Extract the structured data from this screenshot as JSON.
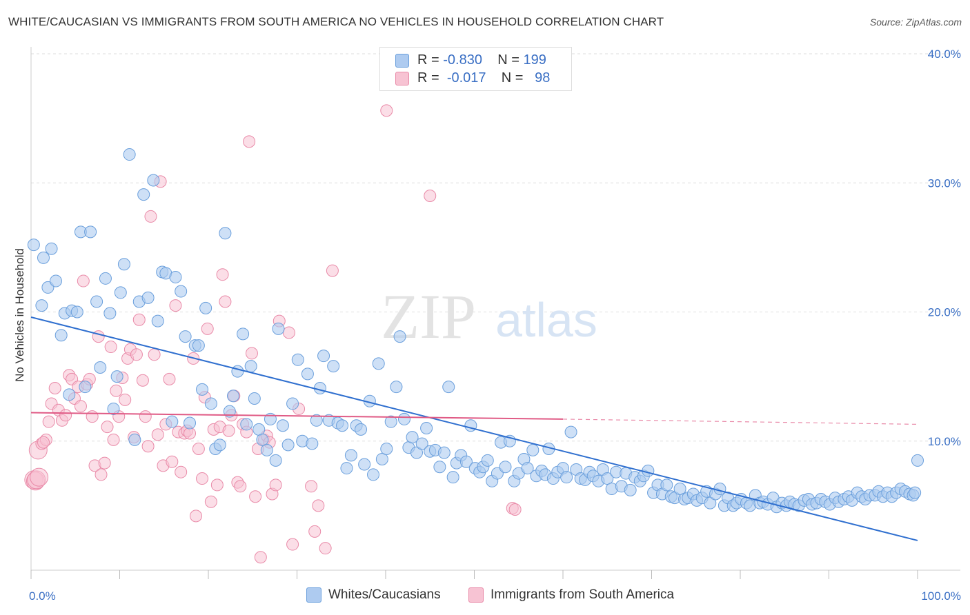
{
  "title": "WHITE/CAUCASIAN VS IMMIGRANTS FROM SOUTH AMERICA NO VEHICLES IN HOUSEHOLD CORRELATION CHART",
  "source": "Source: ZipAtlas.com",
  "colors": {
    "blue_fill": "#aecbf0",
    "blue_stroke": "#6a9fdc",
    "blue_line": "#2f6fcf",
    "pink_fill": "#f7c3d3",
    "pink_stroke": "#e98aa8",
    "pink_line": "#e05a85",
    "tick_text": "#3a6fc4",
    "grid": "#dddddd"
  },
  "legend": {
    "rows": [
      {
        "r_label": "R =",
        "r_value": "-0.830",
        "n_label": "N =",
        "n_value": "199"
      },
      {
        "r_label": "R =",
        "r_value": "-0.017",
        "n_label": "N =",
        "n_value": "98"
      }
    ]
  },
  "bottom_legend": [
    "Whites/Caucasians",
    "Immigrants from South America"
  ],
  "chart_data": {
    "type": "scatter",
    "title": "WHITE/CAUCASIAN VS IMMIGRANTS FROM SOUTH AMERICA NO VEHICLES IN HOUSEHOLD CORRELATION CHART",
    "xlabel": "",
    "ylabel": "No Vehicles in Household",
    "xlim": [
      0,
      100
    ],
    "ylim": [
      0,
      40
    ],
    "x_tick_labels": [
      "0.0%",
      "100.0%"
    ],
    "y_ticks": [
      10,
      20,
      30,
      40
    ],
    "y_tick_labels": [
      "10.0%",
      "20.0%",
      "30.0%",
      "40.0%"
    ],
    "grid": true,
    "legend_position": "top-center",
    "watermark": "ZIPatlas",
    "series": [
      {
        "name": "Whites/Caucasians",
        "r": -0.83,
        "n": 199,
        "trend": {
          "x": [
            0,
            100
          ],
          "y": [
            19.6,
            2.3
          ]
        },
        "points": [
          [
            0.3,
            25.2
          ],
          [
            1.2,
            20.5
          ],
          [
            1.4,
            24.2
          ],
          [
            1.9,
            21.9
          ],
          [
            2.3,
            24.9
          ],
          [
            2.8,
            22.4
          ],
          [
            3.4,
            18.2
          ],
          [
            3.8,
            19.9
          ],
          [
            4.3,
            13.6
          ],
          [
            4.6,
            20.1
          ],
          [
            5.2,
            20.0
          ],
          [
            5.6,
            26.2
          ],
          [
            6.1,
            14.2
          ],
          [
            6.7,
            26.2
          ],
          [
            7.4,
            20.8
          ],
          [
            7.8,
            15.7
          ],
          [
            8.4,
            22.6
          ],
          [
            8.9,
            19.9
          ],
          [
            9.3,
            12.5
          ],
          [
            9.7,
            15.0
          ],
          [
            10.1,
            21.5
          ],
          [
            10.5,
            23.7
          ],
          [
            11.1,
            32.2
          ],
          [
            11.7,
            10.1
          ],
          [
            12.2,
            20.8
          ],
          [
            12.7,
            29.1
          ],
          [
            13.2,
            21.1
          ],
          [
            13.8,
            30.2
          ],
          [
            14.3,
            19.3
          ],
          [
            14.8,
            23.1
          ],
          [
            15.2,
            23.0
          ],
          [
            15.9,
            11.5
          ],
          [
            16.3,
            22.7
          ],
          [
            16.9,
            21.6
          ],
          [
            17.4,
            18.1
          ],
          [
            17.9,
            11.4
          ],
          [
            18.5,
            17.4
          ],
          [
            18.9,
            17.4
          ],
          [
            19.3,
            14.0
          ],
          [
            19.7,
            20.3
          ],
          [
            20.3,
            12.9
          ],
          [
            20.8,
            9.4
          ],
          [
            21.3,
            9.7
          ],
          [
            21.9,
            26.1
          ],
          [
            22.4,
            12.3
          ],
          [
            22.8,
            13.5
          ],
          [
            23.3,
            15.4
          ],
          [
            23.9,
            18.3
          ],
          [
            24.3,
            11.3
          ],
          [
            24.8,
            15.8
          ],
          [
            25.2,
            13.3
          ],
          [
            25.7,
            10.9
          ],
          [
            26.1,
            10.1
          ],
          [
            26.6,
            9.3
          ],
          [
            27.0,
            11.7
          ],
          [
            27.6,
            8.5
          ],
          [
            27.9,
            18.7
          ],
          [
            28.4,
            11.2
          ],
          [
            29.0,
            9.7
          ],
          [
            29.5,
            12.9
          ],
          [
            30.1,
            16.3
          ],
          [
            30.6,
            10.0
          ],
          [
            31.2,
            15.2
          ],
          [
            31.7,
            9.8
          ],
          [
            32.2,
            11.6
          ],
          [
            32.6,
            14.1
          ],
          [
            33.0,
            16.6
          ],
          [
            33.6,
            11.6
          ],
          [
            34.1,
            15.8
          ],
          [
            34.6,
            11.4
          ],
          [
            35.1,
            11.2
          ],
          [
            35.6,
            7.9
          ],
          [
            36.1,
            8.9
          ],
          [
            36.7,
            11.2
          ],
          [
            37.2,
            10.9
          ],
          [
            37.6,
            8.2
          ],
          [
            38.2,
            13.1
          ],
          [
            38.6,
            7.4
          ],
          [
            39.2,
            16.0
          ],
          [
            39.6,
            8.6
          ],
          [
            40.1,
            9.4
          ],
          [
            40.6,
            11.5
          ],
          [
            41.2,
            14.2
          ],
          [
            41.6,
            18.1
          ],
          [
            42.1,
            11.7
          ],
          [
            42.6,
            9.5
          ],
          [
            43.0,
            10.3
          ],
          [
            43.5,
            9.1
          ],
          [
            44.1,
            9.8
          ],
          [
            44.6,
            11.0
          ],
          [
            45.0,
            9.2
          ],
          [
            45.6,
            9.3
          ],
          [
            46.1,
            8.0
          ],
          [
            46.6,
            9.1
          ],
          [
            47.1,
            14.2
          ],
          [
            47.6,
            7.2
          ],
          [
            48.0,
            8.3
          ],
          [
            48.5,
            8.9
          ],
          [
            49.1,
            8.4
          ],
          [
            49.6,
            11.2
          ],
          [
            50.1,
            7.9
          ],
          [
            50.6,
            7.6
          ],
          [
            51.0,
            8.0
          ],
          [
            51.5,
            8.5
          ],
          [
            52.0,
            6.9
          ],
          [
            52.6,
            7.5
          ],
          [
            53.0,
            9.9
          ],
          [
            53.5,
            8.0
          ],
          [
            54.0,
            10.0
          ],
          [
            54.5,
            6.9
          ],
          [
            55.0,
            7.5
          ],
          [
            55.6,
            8.6
          ],
          [
            56.0,
            7.9
          ],
          [
            56.6,
            9.3
          ],
          [
            57.0,
            7.3
          ],
          [
            57.6,
            7.7
          ],
          [
            58.0,
            7.4
          ],
          [
            58.4,
            9.4
          ],
          [
            58.9,
            7.1
          ],
          [
            59.4,
            7.6
          ],
          [
            60.0,
            7.9
          ],
          [
            60.4,
            7.2
          ],
          [
            60.9,
            10.7
          ],
          [
            61.5,
            7.8
          ],
          [
            62.0,
            7.1
          ],
          [
            62.5,
            7.0
          ],
          [
            63.0,
            7.6
          ],
          [
            63.4,
            7.3
          ],
          [
            64.0,
            6.9
          ],
          [
            64.5,
            7.8
          ],
          [
            65.0,
            7.1
          ],
          [
            65.5,
            6.3
          ],
          [
            66.0,
            7.6
          ],
          [
            66.6,
            6.5
          ],
          [
            67.1,
            7.5
          ],
          [
            67.6,
            6.2
          ],
          [
            68.1,
            7.2
          ],
          [
            68.7,
            6.9
          ],
          [
            69.1,
            7.3
          ],
          [
            69.6,
            7.7
          ],
          [
            70.2,
            6.0
          ],
          [
            70.7,
            6.6
          ],
          [
            71.2,
            5.9
          ],
          [
            71.7,
            6.6
          ],
          [
            72.2,
            5.7
          ],
          [
            72.6,
            5.6
          ],
          [
            73.2,
            6.3
          ],
          [
            73.7,
            5.5
          ],
          [
            74.1,
            5.6
          ],
          [
            74.7,
            5.9
          ],
          [
            75.1,
            5.4
          ],
          [
            75.7,
            5.6
          ],
          [
            76.2,
            6.1
          ],
          [
            76.6,
            5.2
          ],
          [
            77.2,
            5.9
          ],
          [
            77.7,
            6.3
          ],
          [
            78.2,
            5.0
          ],
          [
            78.6,
            5.6
          ],
          [
            79.2,
            5.0
          ],
          [
            79.6,
            5.2
          ],
          [
            80.1,
            5.5
          ],
          [
            80.7,
            5.2
          ],
          [
            81.1,
            5.0
          ],
          [
            81.7,
            5.8
          ],
          [
            82.2,
            5.2
          ],
          [
            82.6,
            5.3
          ],
          [
            83.1,
            5.1
          ],
          [
            83.7,
            5.6
          ],
          [
            84.1,
            4.9
          ],
          [
            84.7,
            5.2
          ],
          [
            85.2,
            5.0
          ],
          [
            85.6,
            5.3
          ],
          [
            86.1,
            5.1
          ],
          [
            86.6,
            5.0
          ],
          [
            87.2,
            5.4
          ],
          [
            87.7,
            5.5
          ],
          [
            88.1,
            5.1
          ],
          [
            88.6,
            5.2
          ],
          [
            89.1,
            5.5
          ],
          [
            89.6,
            5.3
          ],
          [
            90.1,
            5.1
          ],
          [
            90.7,
            5.6
          ],
          [
            91.1,
            5.3
          ],
          [
            91.7,
            5.5
          ],
          [
            92.2,
            5.7
          ],
          [
            92.6,
            5.4
          ],
          [
            93.2,
            6.0
          ],
          [
            93.7,
            5.7
          ],
          [
            94.1,
            5.5
          ],
          [
            94.6,
            5.8
          ],
          [
            95.2,
            5.8
          ],
          [
            95.6,
            6.1
          ],
          [
            96.1,
            5.7
          ],
          [
            96.6,
            6.0
          ],
          [
            97.1,
            5.7
          ],
          [
            97.6,
            6.0
          ],
          [
            98.1,
            6.3
          ],
          [
            98.6,
            6.1
          ],
          [
            99.1,
            5.9
          ],
          [
            99.5,
            5.8
          ],
          [
            99.7,
            6.0
          ],
          [
            100.0,
            8.5
          ]
        ]
      },
      {
        "name": "Immigrants from South America",
        "r": -0.017,
        "n": 98,
        "trend": {
          "x": [
            0,
            60
          ],
          "y": [
            12.2,
            11.7
          ]
        },
        "trend_dashed": {
          "x": [
            60,
            100
          ],
          "y": [
            11.7,
            11.3
          ]
        },
        "points": [
          [
            0.3,
            7.0
          ],
          [
            0.5,
            6.9
          ],
          [
            0.8,
            9.3
          ],
          [
            1.2,
            9.8
          ],
          [
            1.7,
            10.1
          ],
          [
            2.0,
            11.5
          ],
          [
            2.3,
            12.9
          ],
          [
            2.7,
            14.1
          ],
          [
            3.1,
            12.4
          ],
          [
            3.5,
            11.6
          ],
          [
            3.9,
            12.0
          ],
          [
            4.3,
            15.1
          ],
          [
            4.6,
            14.8
          ],
          [
            4.9,
            13.3
          ],
          [
            5.3,
            14.2
          ],
          [
            5.6,
            12.7
          ],
          [
            5.9,
            22.4
          ],
          [
            6.3,
            14.4
          ],
          [
            6.6,
            14.8
          ],
          [
            6.9,
            11.9
          ],
          [
            7.2,
            8.1
          ],
          [
            7.6,
            18.1
          ],
          [
            7.9,
            7.4
          ],
          [
            8.3,
            8.3
          ],
          [
            8.6,
            11.1
          ],
          [
            9.0,
            17.3
          ],
          [
            9.3,
            10.1
          ],
          [
            9.6,
            13.9
          ],
          [
            9.9,
            11.9
          ],
          [
            10.3,
            14.9
          ],
          [
            10.6,
            13.2
          ],
          [
            10.9,
            16.4
          ],
          [
            11.2,
            17.1
          ],
          [
            11.6,
            10.3
          ],
          [
            11.9,
            16.7
          ],
          [
            12.2,
            19.4
          ],
          [
            12.6,
            14.7
          ],
          [
            12.9,
            11.9
          ],
          [
            13.2,
            9.6
          ],
          [
            13.5,
            27.4
          ],
          [
            13.9,
            16.7
          ],
          [
            14.3,
            10.5
          ],
          [
            14.6,
            30.1
          ],
          [
            14.9,
            8.1
          ],
          [
            15.2,
            11.3
          ],
          [
            15.6,
            14.8
          ],
          [
            15.9,
            8.4
          ],
          [
            16.3,
            20.5
          ],
          [
            16.6,
            10.7
          ],
          [
            16.9,
            7.6
          ],
          [
            17.3,
            10.6
          ],
          [
            17.6,
            10.8
          ],
          [
            17.9,
            10.6
          ],
          [
            18.3,
            16.4
          ],
          [
            18.6,
            4.2
          ],
          [
            18.9,
            9.4
          ],
          [
            19.3,
            7.1
          ],
          [
            19.6,
            13.4
          ],
          [
            19.9,
            18.7
          ],
          [
            20.3,
            5.3
          ],
          [
            20.6,
            10.9
          ],
          [
            21.0,
            6.6
          ],
          [
            21.3,
            11.1
          ],
          [
            21.6,
            22.9
          ],
          [
            21.9,
            20.8
          ],
          [
            22.3,
            10.8
          ],
          [
            22.6,
            12.0
          ],
          [
            22.9,
            13.5
          ],
          [
            23.3,
            6.8
          ],
          [
            23.6,
            6.5
          ],
          [
            23.9,
            11.3
          ],
          [
            24.3,
            10.7
          ],
          [
            24.6,
            33.2
          ],
          [
            24.9,
            16.8
          ],
          [
            25.3,
            5.7
          ],
          [
            25.6,
            9.4
          ],
          [
            25.9,
            1.0
          ],
          [
            26.3,
            10.1
          ],
          [
            26.6,
            10.4
          ],
          [
            26.9,
            9.9
          ],
          [
            27.2,
            5.9
          ],
          [
            27.6,
            6.6
          ],
          [
            28.0,
            19.3
          ],
          [
            29.1,
            18.4
          ],
          [
            29.5,
            2.0
          ],
          [
            30.2,
            12.5
          ],
          [
            31.6,
            6.5
          ],
          [
            32.0,
            3.0
          ],
          [
            32.4,
            5.0
          ],
          [
            33.2,
            1.7
          ],
          [
            34.0,
            23.2
          ],
          [
            40.1,
            35.6
          ],
          [
            45.0,
            29.0
          ],
          [
            54.3,
            4.8
          ],
          [
            54.6,
            4.7
          ],
          [
            0.6,
            7.0
          ],
          [
            0.9,
            7.2
          ],
          [
            1.4,
            9.9
          ]
        ]
      }
    ]
  }
}
